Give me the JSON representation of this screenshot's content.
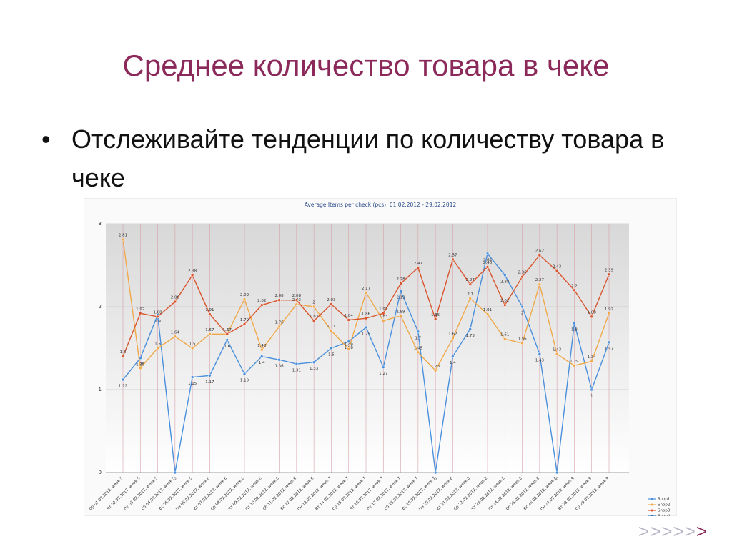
{
  "title": "Среднее количество товара в чеке",
  "bullet": "Отслеживайте тенденции по количеству товара в чеке",
  "nav": [
    ">>>>>",
    ">"
  ],
  "chart_data": {
    "type": "line",
    "title": "Average Items per check (pcs), 01.02.2012 - 29.02.2012",
    "categories": [
      "Ср 01.02.2012, week 5",
      "Чт 02.02.2012, week 5",
      "Пт 03.02.2012, week 5",
      "Сб 04.02.2012, week 5",
      "Вс 05.02.2012, week 5",
      "Пн 06.02.2012, week 6",
      "Вт 07.02.2012, week 6",
      "Ср 08.02.2012, week 6",
      "Чт 09.02.2012, week 6",
      "Пт 10.02.2012, week 6",
      "Сб 11.02.2012, week 6",
      "Вс 12.02.2012, week 6",
      "Пн 13.02.2012, week 7",
      "Вт 14.02.2012, week 7",
      "Ср 15.02.2012, week 7",
      "Чт 16.02.2012, week 7",
      "Пт 17.02.2012, week 7",
      "Сб 18.02.2012, week 7",
      "Вс 19.02.2012, week 7",
      "Пн 20.02.2012, week 8",
      "Вт 21.02.2012, week 8",
      "Ср 22.02.2012, week 8",
      "Чт 23.02.2012, week 8",
      "Пт 24.02.2012, week 8",
      "Сб 25.02.2012, week 8",
      "Вс 26.02.2012, week 8",
      "Пн 27.02.2012, week 9",
      "Вт 28.02.2012, week 9",
      "Ср 29.02.2012, week 9"
    ],
    "series": [
      {
        "name": "Shop1",
        "color": "#4a8fdc",
        "values": [
          1.12,
          1.38,
          1.9,
          0,
          1.15,
          1.17,
          1.6,
          1.19,
          1.4,
          1.36,
          1.31,
          1.33,
          1.5,
          1.58,
          1.75,
          1.27,
          2.19,
          1.7,
          0,
          1.4,
          1.73,
          2.64,
          2.38,
          2,
          1.43,
          0,
          1.8,
          1,
          1.57
        ]
      },
      {
        "name": "Shop2",
        "color": "#f0a848",
        "values": [
          2.81,
          1.26,
          1.5,
          1.64,
          1.5,
          1.67,
          1.67,
          2.09,
          1.48,
          1.76,
          2.03,
          2,
          1.71,
          1.49,
          2.17,
          1.83,
          1.89,
          1.45,
          1.23,
          1.62,
          2.1,
          1.91,
          1.61,
          1.56,
          2.27,
          1.43,
          1.29,
          1.34,
          1.92
        ]
      },
      {
        "name": "Shop3",
        "color": "#d9542c",
        "values": [
          1.4,
          1.92,
          1.88,
          2.06,
          2.38,
          1.91,
          1.67,
          1.79,
          2.02,
          2.08,
          2.08,
          1.83,
          2.03,
          1.84,
          1.86,
          1.92,
          2.28,
          2.47,
          1.85,
          2.57,
          2.27,
          2.48,
          2.02,
          2.36,
          2.62,
          2.43,
          2.2,
          1.88,
          2.39
        ]
      },
      {
        "name": "Shop4",
        "color": "#2f6fb8",
        "values": [
          null,
          null,
          null,
          null,
          null,
          null,
          null,
          null,
          null,
          null,
          null,
          null,
          null,
          null,
          null,
          null,
          null,
          null,
          null,
          null,
          null,
          null,
          null,
          null,
          null,
          null,
          null,
          null,
          null
        ]
      }
    ],
    "ylim": [
      0,
      3
    ],
    "yticks": [
      0,
      1,
      2,
      3
    ],
    "grid": true,
    "legend": "bottom-right"
  }
}
